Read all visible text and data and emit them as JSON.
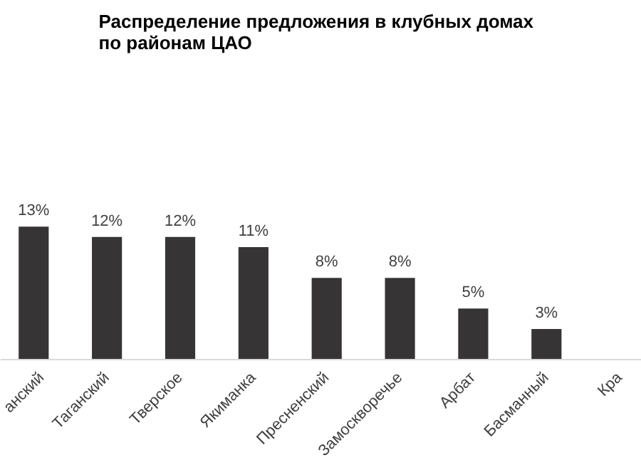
{
  "chart_data": {
    "type": "bar",
    "title": "Распределение  предложения  в клубных домах\nпо районам  ЦАО",
    "categories": [
      "анский",
      "Таганский",
      "Тверское",
      "Якиманка",
      "Пресненский",
      "Замоскворечье",
      "Арбат",
      "Басманный",
      "Кра"
    ],
    "values": [
      13,
      12,
      12,
      11,
      8,
      8,
      5,
      3,
      null
    ],
    "value_labels": [
      "13%",
      "12%",
      "12%",
      "11%",
      "8%",
      "8%",
      "5%",
      "3%",
      null
    ],
    "color": "#363434",
    "tick_labels": "x",
    "grid": false
  }
}
